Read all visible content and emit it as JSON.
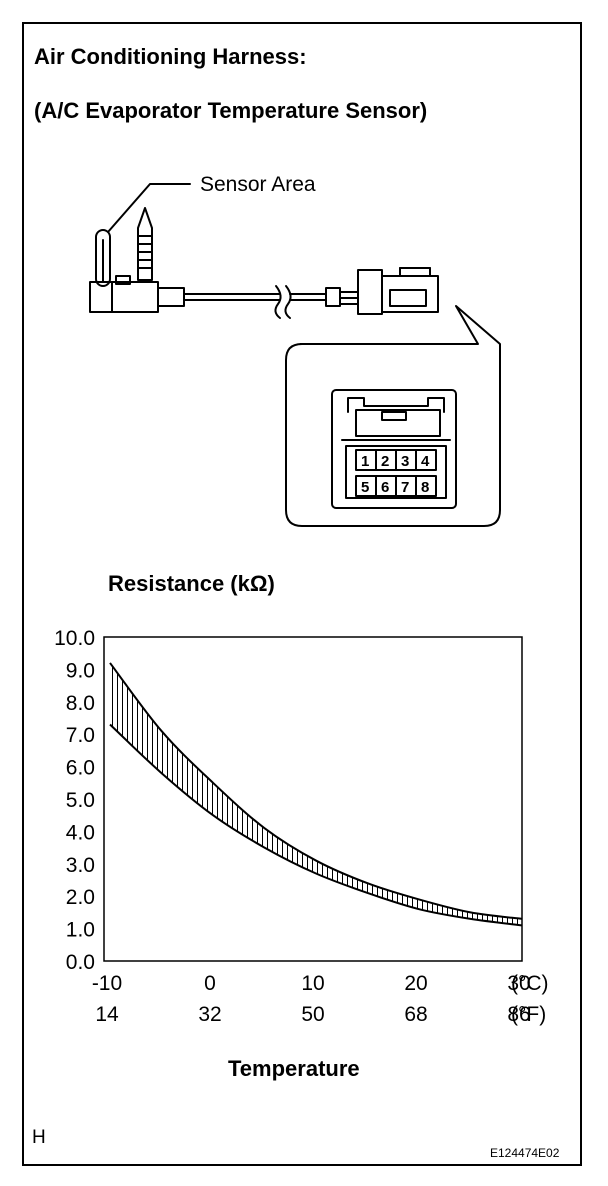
{
  "header": {
    "title_line1": "Air Conditioning Harness:",
    "title_line2": "(A/C Evaporator Temperature Sensor)"
  },
  "diagram": {
    "sensor_area_label": "Sensor Area",
    "connector_pins_top": [
      "1",
      "2",
      "3",
      "4"
    ],
    "connector_pins_bottom": [
      "5",
      "6",
      "7",
      "8"
    ]
  },
  "chart_data": {
    "type": "area",
    "ylabel": "Resistance (kΩ)",
    "xlabel": "Temperature",
    "ylim": [
      0,
      10
    ],
    "xlim": [
      -10,
      30
    ],
    "y_ticks": [
      "0.0",
      "1.0",
      "2.0",
      "3.0",
      "4.0",
      "5.0",
      "6.0",
      "7.0",
      "8.0",
      "9.0",
      "10.0"
    ],
    "x_ticks_c": [
      "-10",
      "0",
      "10",
      "20",
      "30"
    ],
    "x_ticks_f": [
      "14",
      "32",
      "50",
      "68",
      "86"
    ],
    "x_unit_c": "(°C)",
    "x_unit_f": "(°F)",
    "grid": false,
    "series": [
      {
        "x": [
          -10,
          -5,
          0,
          5,
          10,
          15,
          20,
          25,
          30
        ],
        "values": [
          9.2,
          7.1,
          5.5,
          4.1,
          3.1,
          2.4,
          1.9,
          1.5,
          1.3
        ]
      },
      {
        "x": [
          -10,
          -5,
          0,
          5,
          10,
          15,
          20,
          25,
          30
        ],
        "values": [
          7.3,
          5.8,
          4.5,
          3.5,
          2.7,
          2.1,
          1.6,
          1.3,
          1.1
        ]
      }
    ]
  },
  "footer": {
    "corner_mark": "H",
    "figure_code": "E124474E02"
  }
}
